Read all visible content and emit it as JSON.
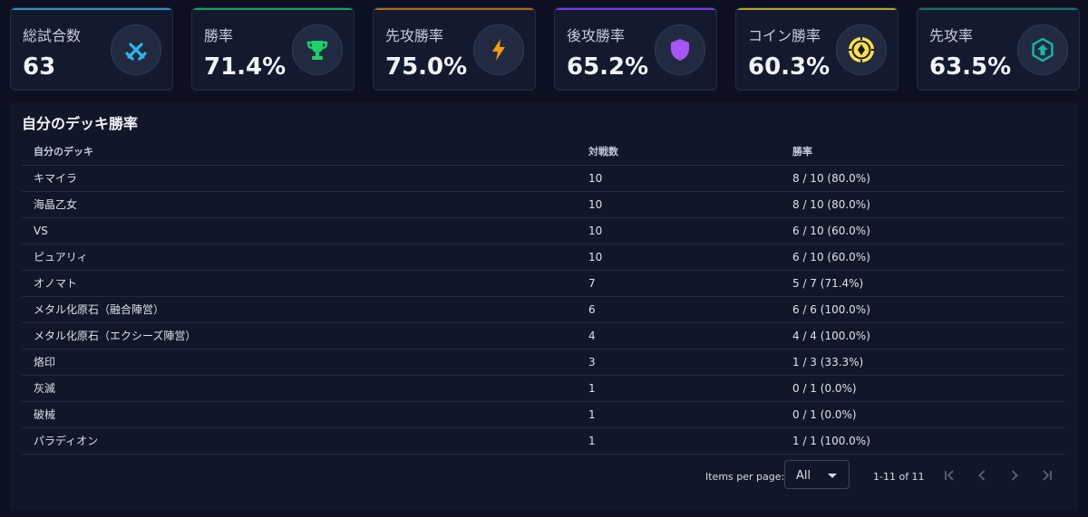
{
  "stats": [
    {
      "label": "総試合数",
      "value": "63",
      "icon": "crossed-swords-icon",
      "color": "#2fb6f0"
    },
    {
      "label": "勝率",
      "value": "71.4%",
      "icon": "trophy-icon",
      "color": "#19d36b"
    },
    {
      "label": "先攻勝率",
      "value": "75.0%",
      "icon": "lightning-icon",
      "color": "#f59e0b"
    },
    {
      "label": "後攻勝率",
      "value": "65.2%",
      "icon": "shield-icon",
      "color": "#a855f7"
    },
    {
      "label": "コイン勝率",
      "value": "60.3%",
      "icon": "coin-icon",
      "color": "#fde047"
    },
    {
      "label": "先攻率",
      "value": "63.5%",
      "icon": "arrow-up-hexagon-icon",
      "color": "#14b8a6"
    }
  ],
  "deck_table": {
    "title": "自分のデッキ勝率",
    "columns": [
      "自分のデッキ",
      "対戦数",
      "勝率"
    ],
    "rows": [
      [
        "キマイラ",
        "10",
        "8 / 10 (80.0%)"
      ],
      [
        "海晶乙女",
        "10",
        "8 / 10 (80.0%)"
      ],
      [
        "VS",
        "10",
        "6 / 10 (60.0%)"
      ],
      [
        "ピュアリィ",
        "10",
        "6 / 10 (60.0%)"
      ],
      [
        "オノマト",
        "7",
        "5 / 7 (71.4%)"
      ],
      [
        "メタル化原石（融合陣営）",
        "6",
        "6 / 6 (100.0%)"
      ],
      [
        "メタル化原石（エクシーズ陣営）",
        "4",
        "4 / 4 (100.0%)"
      ],
      [
        "烙印",
        "3",
        "1 / 3 (33.3%)"
      ],
      [
        "灰滅",
        "1",
        "0 / 1 (0.0%)"
      ],
      [
        "破械",
        "1",
        "0 / 1 (0.0%)"
      ],
      [
        "パラディオン",
        "1",
        "1 / 1 (100.0%)"
      ]
    ]
  },
  "pagination": {
    "items_per_page_label": "Items per page:",
    "items_per_page_value": "All",
    "range": "1-11 of 11"
  }
}
